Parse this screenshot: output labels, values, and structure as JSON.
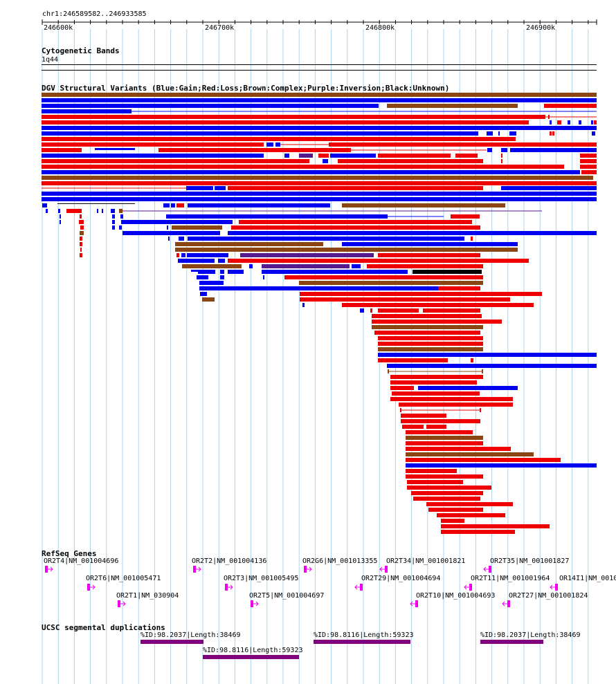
{
  "region": {
    "label": "chr1:246589582..246933585"
  },
  "ruler": {
    "ticks": [
      "246600k",
      "246700k",
      "246800k",
      "246900k"
    ]
  },
  "tracks": {
    "cytobands": {
      "title": "Cytogenetic Bands",
      "band": "1q44"
    },
    "dgv": {
      "title": "DGV Structural Variants (Blue:Gain;Red:Loss;Brown:Complex;Purple:Inversion;Black:Unknown)",
      "colors": {
        "gain": "#0000ee",
        "loss": "#ee0000",
        "complex": "#8b4513",
        "inversion": "#551a8b",
        "unknown": "#000000"
      }
    },
    "refseq": {
      "title": "RefSeq Genes",
      "gene_color": "#ee00ee",
      "genes": [
        {
          "label": "OR2T4|NM_001004696",
          "strand": "+"
        },
        {
          "label": "OR2T2|NM_001004136",
          "strand": "+"
        },
        {
          "label": "OR2G6|NM_001013355",
          "strand": "+"
        },
        {
          "label": "OR2T34|NM_001001821",
          "strand": "-"
        },
        {
          "label": "OR2T35|NM_001001827",
          "strand": "-"
        },
        {
          "label": "OR2T6|NM_001005471",
          "strand": "+"
        },
        {
          "label": "OR2T3|NM_001005495",
          "strand": "+"
        },
        {
          "label": "OR2T29|NM_001004694",
          "strand": "-"
        },
        {
          "label": "OR2T11|NM_001001964",
          "strand": "-"
        },
        {
          "label": "OR14I1|NM_00100",
          "strand": "-"
        },
        {
          "label": "OR2T1|NM_030904",
          "strand": "+"
        },
        {
          "label": "OR2T5|NM_001004697",
          "strand": "+"
        },
        {
          "label": "OR2T10|NM_001004693",
          "strand": "-"
        },
        {
          "label": "OR2T27|NM_001001824",
          "strand": "-"
        }
      ]
    },
    "segdups": {
      "title": "UCSC segmental duplications",
      "color": "#800080",
      "items": [
        {
          "label": "%ID:98.2037|Length:38469"
        },
        {
          "label": "%ID:98.8116|Length:59323"
        },
        {
          "label": "%ID:98.2037|Length:38469"
        },
        {
          "label": "%ID:98.8116|Length:59323"
        }
      ]
    }
  }
}
